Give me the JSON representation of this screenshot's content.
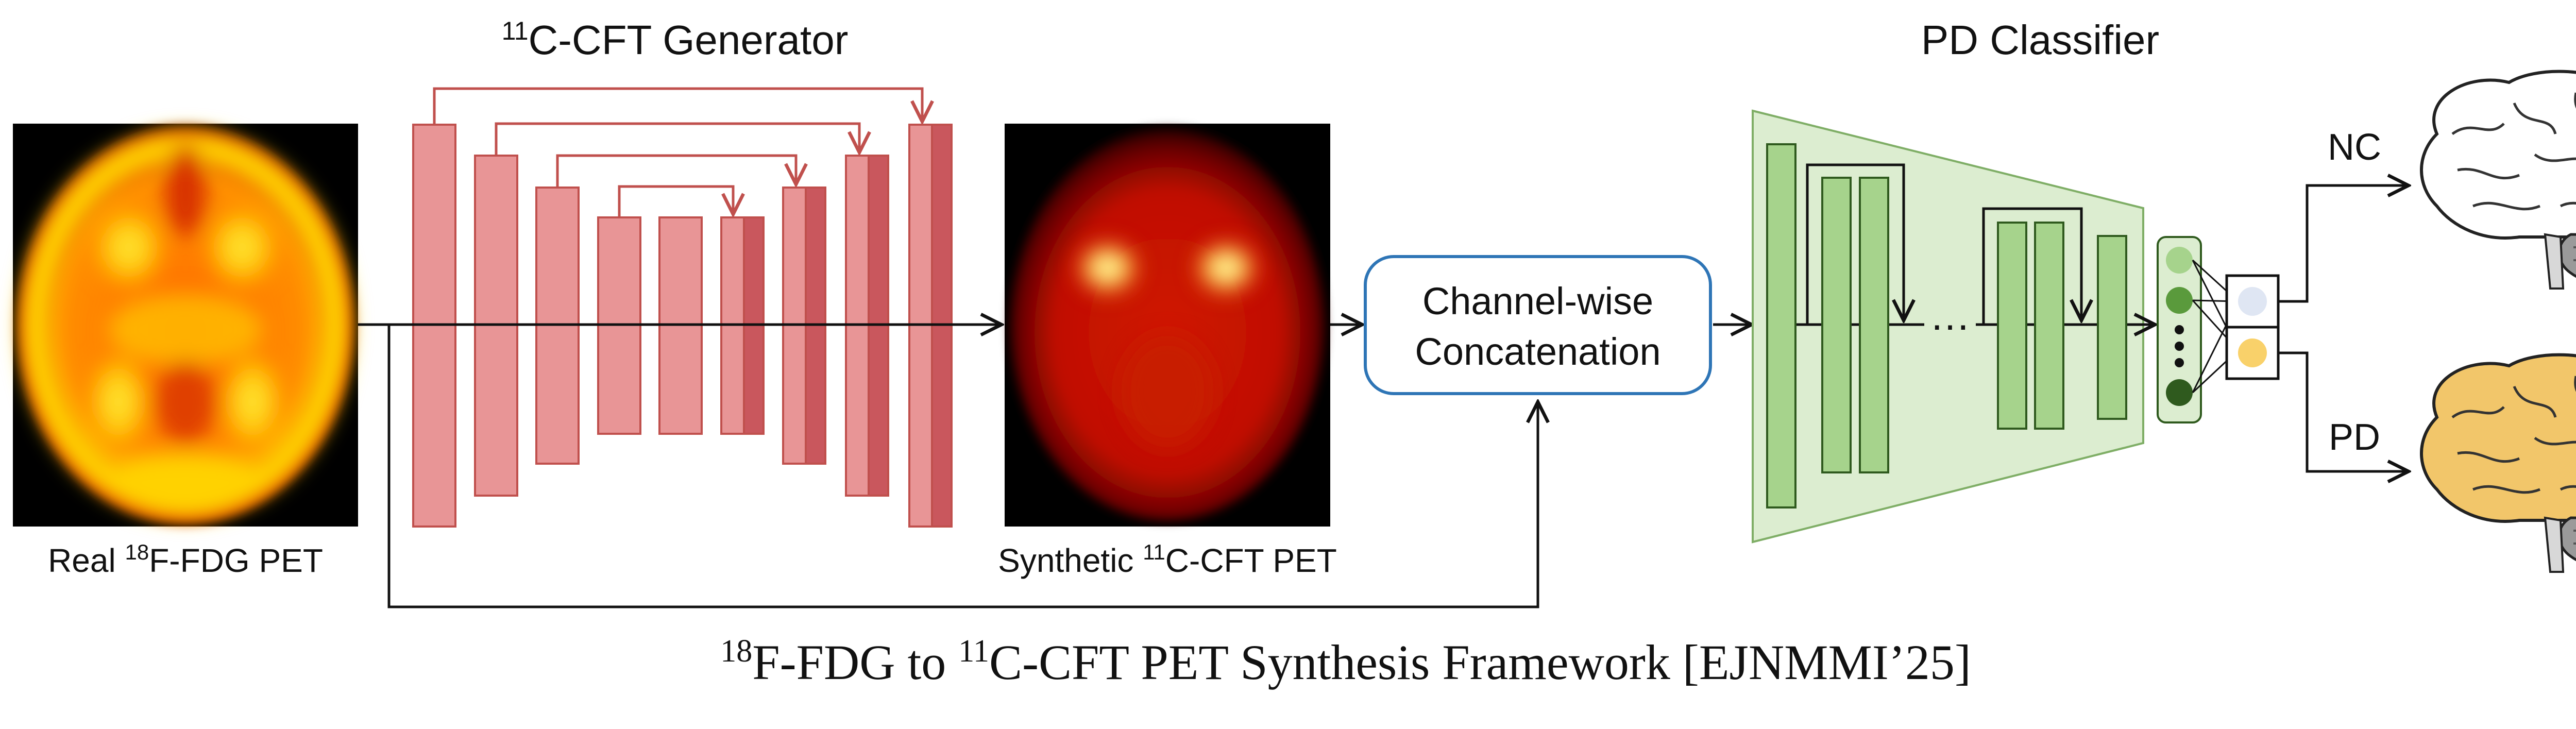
{
  "generator": {
    "title_sup": "11",
    "title_rest": "C-CFT Generator"
  },
  "classifier": {
    "title": "PD Classifier"
  },
  "input_image": {
    "label_pre": "Real ",
    "label_sup": "18",
    "label_post": "F-FDG PET"
  },
  "output_image": {
    "label_pre": "Synthetic ",
    "label_sup": "11",
    "label_post": "C-CFT PET"
  },
  "concat_box": {
    "line1": "Channel-wise",
    "line2": "Concatenation"
  },
  "ellipsis": "…",
  "outputs": {
    "nc_label": "NC",
    "pd_label": "PD"
  },
  "caption": {
    "sup1": "18",
    "part1": "F-FDG to ",
    "sup2": "11",
    "part2": "C-CFT PET Synthesis Framework [EJNMMI’25]"
  },
  "colors": {
    "generator_fill": "#e89596",
    "generator_dark": "#c9575d",
    "generator_edge": "#c0504d",
    "classifier_bg": "#dcedd0",
    "classifier_block": "#a6d38c",
    "classifier_edge": "#2f5a1e",
    "node_light": "#a6d38c",
    "node_mid": "#5a9a3c",
    "node_dark": "#2f5a1e",
    "nc_output": "#dfe6f3",
    "pd_output": "#f9d16a",
    "concat_edge": "#2e75b6",
    "brain_nc": "#ffffff",
    "brain_pd": "#f2c66a"
  }
}
